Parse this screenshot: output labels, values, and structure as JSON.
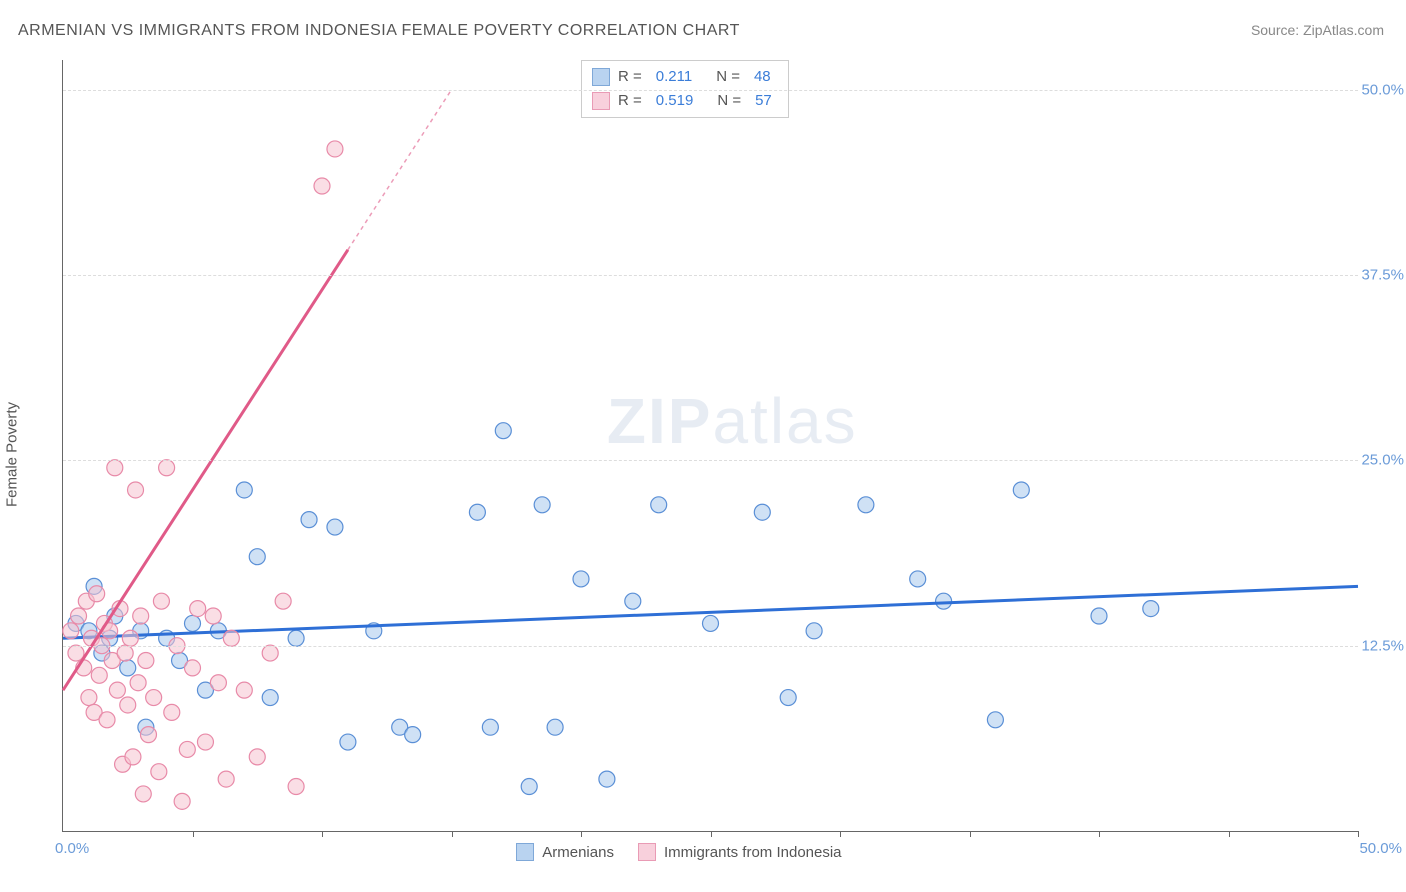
{
  "title": "ARMENIAN VS IMMIGRANTS FROM INDONESIA FEMALE POVERTY CORRELATION CHART",
  "source_label": "Source: ZipAtlas.com",
  "ylabel": "Female Poverty",
  "watermark_bold": "ZIP",
  "watermark_light": "atlas",
  "xlim": [
    0,
    50
  ],
  "ylim": [
    0,
    52
  ],
  "x_origin_label": "0.0%",
  "x_max_label": "50.0%",
  "y_ticks": [
    {
      "v": 12.5,
      "label": "12.5%"
    },
    {
      "v": 25.0,
      "label": "25.0%"
    },
    {
      "v": 37.5,
      "label": "37.5%"
    },
    {
      "v": 50.0,
      "label": "50.0%"
    }
  ],
  "x_tick_positions": [
    5,
    10,
    15,
    20,
    25,
    30,
    35,
    40,
    45,
    50
  ],
  "series": [
    {
      "name": "Armenians",
      "color_fill": "#a8c8ec",
      "color_stroke": "#5a8fd6",
      "legend_swatch_fill": "#b9d3f0",
      "legend_swatch_stroke": "#7fa8d8",
      "R": "0.211",
      "N": "48",
      "regression": {
        "x1": 0,
        "y1": 13.0,
        "x2": 50,
        "y2": 16.5,
        "solid_until_x": 50
      },
      "line_color": "#2e6fd6",
      "points": [
        [
          0.5,
          14.0
        ],
        [
          1.0,
          13.5
        ],
        [
          1.2,
          16.5
        ],
        [
          1.5,
          12.0
        ],
        [
          1.8,
          13.0
        ],
        [
          2.0,
          14.5
        ],
        [
          2.5,
          11.0
        ],
        [
          3.0,
          13.5
        ],
        [
          3.2,
          7.0
        ],
        [
          4.0,
          13.0
        ],
        [
          4.5,
          11.5
        ],
        [
          5.0,
          14.0
        ],
        [
          5.5,
          9.5
        ],
        [
          6.0,
          13.5
        ],
        [
          7.0,
          23.0
        ],
        [
          7.5,
          18.5
        ],
        [
          8.0,
          9.0
        ],
        [
          9.0,
          13.0
        ],
        [
          9.5,
          21.0
        ],
        [
          10.5,
          20.5
        ],
        [
          11.0,
          6.0
        ],
        [
          12.0,
          13.5
        ],
        [
          13.0,
          7.0
        ],
        [
          13.5,
          6.5
        ],
        [
          16.0,
          21.5
        ],
        [
          16.5,
          7.0
        ],
        [
          17.0,
          27.0
        ],
        [
          18.0,
          3.0
        ],
        [
          18.5,
          22.0
        ],
        [
          19.0,
          7.0
        ],
        [
          20.0,
          17.0
        ],
        [
          21.0,
          3.5
        ],
        [
          22.0,
          15.5
        ],
        [
          23.0,
          22.0
        ],
        [
          25.0,
          14.0
        ],
        [
          27.0,
          21.5
        ],
        [
          28.0,
          9.0
        ],
        [
          29.0,
          13.5
        ],
        [
          31.0,
          22.0
        ],
        [
          33.0,
          17.0
        ],
        [
          34.0,
          15.5
        ],
        [
          36.0,
          7.5
        ],
        [
          37.0,
          23.0
        ],
        [
          40.0,
          14.5
        ],
        [
          42.0,
          15.0
        ]
      ]
    },
    {
      "name": "Immigrants from Indonesia",
      "color_fill": "#f5c2d0",
      "color_stroke": "#e88aa8",
      "legend_swatch_fill": "#f8d0dc",
      "legend_swatch_stroke": "#e99bb5",
      "R": "0.519",
      "N": "57",
      "regression": {
        "x1": 0,
        "y1": 9.5,
        "x2": 15,
        "y2": 50.0,
        "solid_until_x": 11
      },
      "line_color": "#e05a88",
      "points": [
        [
          0.3,
          13.5
        ],
        [
          0.5,
          12.0
        ],
        [
          0.6,
          14.5
        ],
        [
          0.8,
          11.0
        ],
        [
          0.9,
          15.5
        ],
        [
          1.0,
          9.0
        ],
        [
          1.1,
          13.0
        ],
        [
          1.2,
          8.0
        ],
        [
          1.3,
          16.0
        ],
        [
          1.4,
          10.5
        ],
        [
          1.5,
          12.5
        ],
        [
          1.6,
          14.0
        ],
        [
          1.7,
          7.5
        ],
        [
          1.8,
          13.5
        ],
        [
          1.9,
          11.5
        ],
        [
          2.0,
          24.5
        ],
        [
          2.1,
          9.5
        ],
        [
          2.2,
          15.0
        ],
        [
          2.3,
          4.5
        ],
        [
          2.4,
          12.0
        ],
        [
          2.5,
          8.5
        ],
        [
          2.6,
          13.0
        ],
        [
          2.7,
          5.0
        ],
        [
          2.8,
          23.0
        ],
        [
          2.9,
          10.0
        ],
        [
          3.0,
          14.5
        ],
        [
          3.1,
          2.5
        ],
        [
          3.2,
          11.5
        ],
        [
          3.3,
          6.5
        ],
        [
          3.5,
          9.0
        ],
        [
          3.7,
          4.0
        ],
        [
          3.8,
          15.5
        ],
        [
          4.0,
          24.5
        ],
        [
          4.2,
          8.0
        ],
        [
          4.4,
          12.5
        ],
        [
          4.6,
          2.0
        ],
        [
          4.8,
          5.5
        ],
        [
          5.0,
          11.0
        ],
        [
          5.2,
          15.0
        ],
        [
          5.5,
          6.0
        ],
        [
          5.8,
          14.5
        ],
        [
          6.0,
          10.0
        ],
        [
          6.3,
          3.5
        ],
        [
          6.5,
          13.0
        ],
        [
          7.0,
          9.5
        ],
        [
          7.5,
          5.0
        ],
        [
          8.0,
          12.0
        ],
        [
          8.5,
          15.5
        ],
        [
          9.0,
          3.0
        ],
        [
          10.0,
          43.5
        ],
        [
          10.5,
          46.0
        ]
      ]
    }
  ],
  "legend_labels": {
    "R_prefix": "R =",
    "N_prefix": "N ="
  },
  "bottom_legend": [
    {
      "label": "Armenians",
      "fill": "#b9d3f0",
      "stroke": "#7fa8d8"
    },
    {
      "label": "Immigrants from Indonesia",
      "fill": "#f8d0dc",
      "stroke": "#e99bb5"
    }
  ],
  "marker_radius": 8,
  "line_width_solid": 3,
  "line_width_dash": 1.5
}
